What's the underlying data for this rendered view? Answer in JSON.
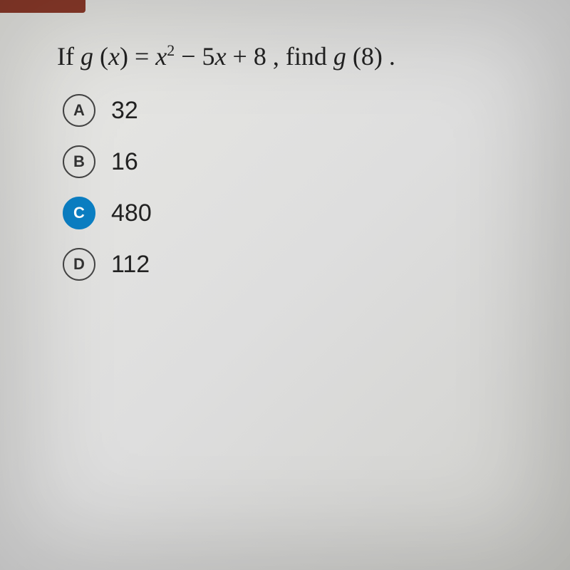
{
  "question": {
    "prefix": "If ",
    "func_g": "g",
    "open_paren": " (",
    "var_x": "x",
    "close_paren": ") = ",
    "term1_var": "x",
    "term1_exp": "2",
    "minus": " − 5",
    "term2_var": "x",
    "plus": " + 8 , find ",
    "func_g2": "g",
    "open_paren2": " (",
    "eval_val": "8",
    "close_paren2": ") ."
  },
  "options": [
    {
      "letter": "A",
      "value": "32",
      "selected": false
    },
    {
      "letter": "B",
      "value": "16",
      "selected": false
    },
    {
      "letter": "C",
      "value": "480",
      "selected": true
    },
    {
      "letter": "D",
      "value": "112",
      "selected": false
    }
  ],
  "colors": {
    "selected_bg": "#0b7fc4",
    "circle_border": "#444444",
    "text": "#222222",
    "red_bar": "#8b3a2a"
  },
  "typography": {
    "question_fontsize": 36,
    "answer_fontsize": 34,
    "letter_fontsize": 22
  }
}
